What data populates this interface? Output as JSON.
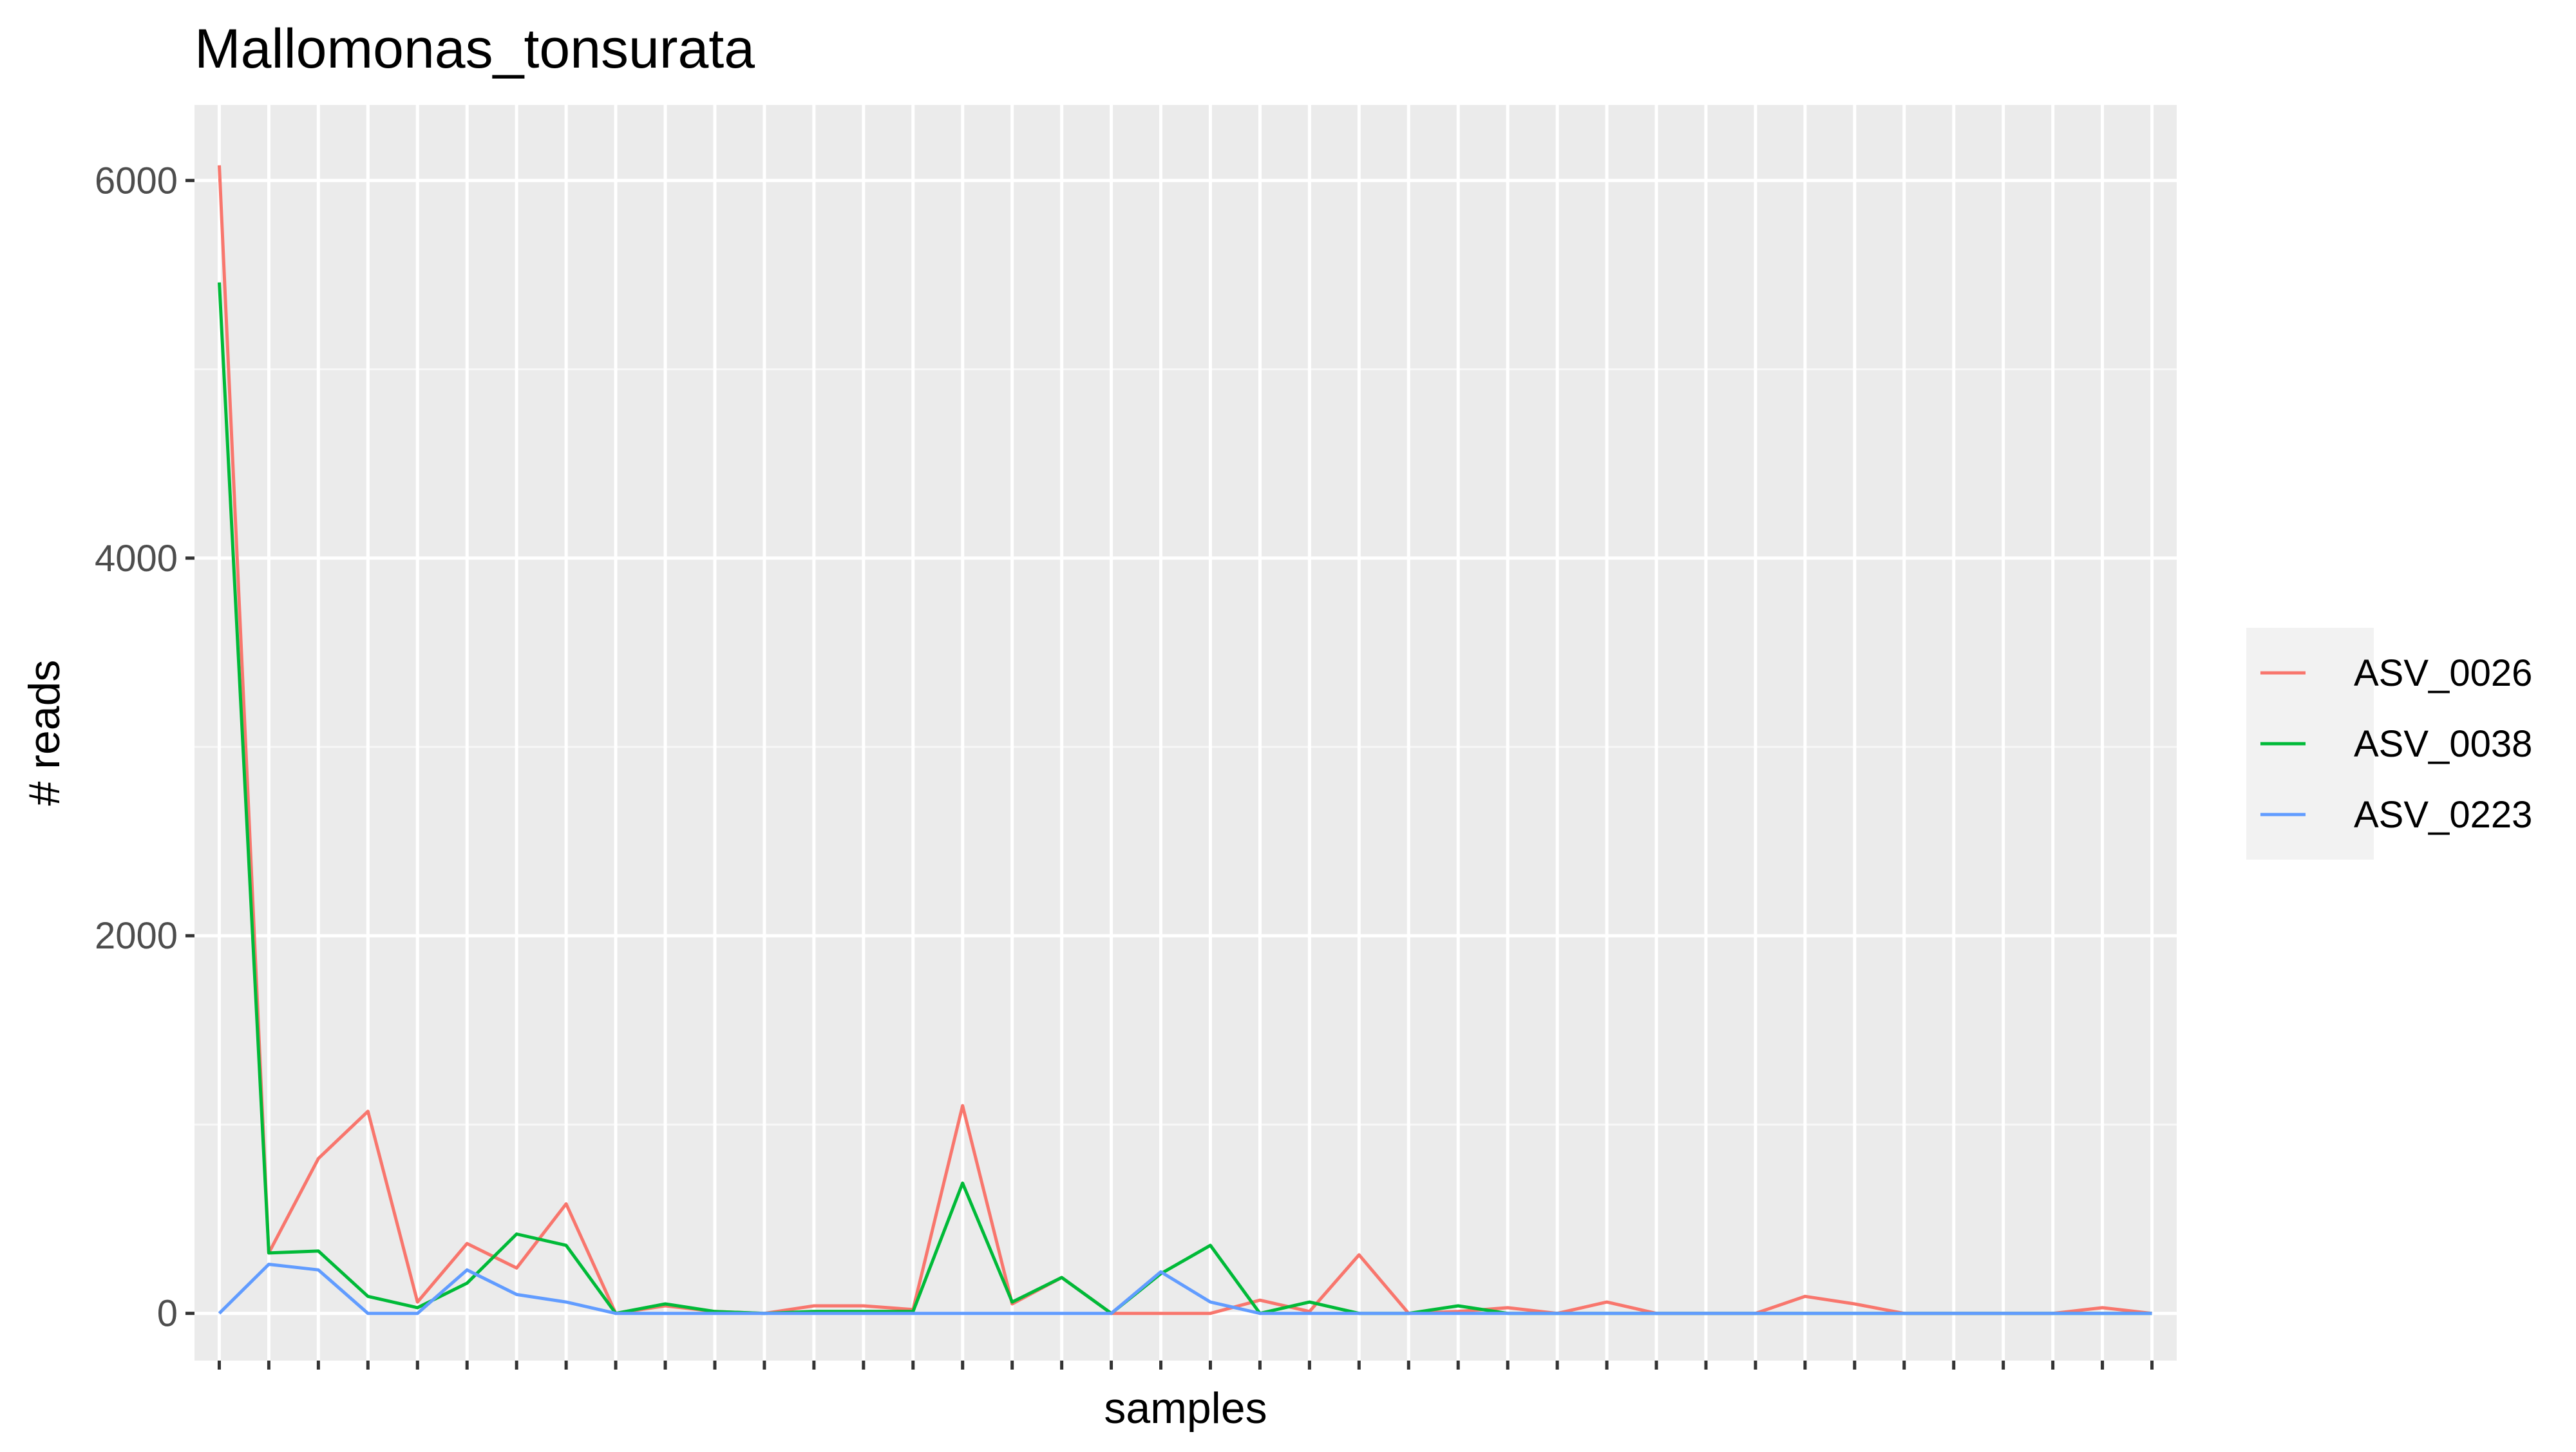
{
  "chart_data": {
    "type": "line",
    "title": "Mallomonas_tonsurata",
    "xlabel": "samples",
    "ylabel": "# reads",
    "x": [
      1,
      2,
      3,
      4,
      5,
      6,
      7,
      8,
      9,
      10,
      11,
      12,
      13,
      14,
      15,
      16,
      17,
      18,
      19,
      20,
      21,
      22,
      23,
      24,
      25,
      26,
      27,
      28,
      29,
      30,
      31,
      32,
      33,
      34,
      35,
      36,
      37,
      38,
      39,
      40
    ],
    "x_tick_labels": "none (tick marks only)",
    "y_ticks": [
      0,
      2000,
      4000,
      6000
    ],
    "ylim": [
      -250,
      6400
    ],
    "xlim": [
      0.5,
      40.5
    ],
    "grid": true,
    "panel_background": "#ebebeb",
    "legend_position": "right",
    "series": [
      {
        "name": "ASV_0026",
        "color": "#F8766D",
        "values": [
          6080,
          320,
          820,
          1070,
          60,
          370,
          240,
          580,
          0,
          40,
          10,
          0,
          40,
          40,
          20,
          1100,
          50,
          190,
          0,
          0,
          0,
          70,
          10,
          310,
          0,
          10,
          30,
          0,
          60,
          0,
          0,
          0,
          90,
          50,
          0,
          0,
          0,
          0,
          30,
          0
        ]
      },
      {
        "name": "ASV_0038",
        "color": "#00BA38",
        "values": [
          5460,
          320,
          330,
          90,
          30,
          160,
          420,
          360,
          0,
          50,
          10,
          0,
          10,
          10,
          10,
          690,
          60,
          190,
          0,
          210,
          360,
          0,
          60,
          0,
          0,
          40,
          0,
          0,
          0,
          0,
          0,
          0,
          0,
          0,
          0,
          0,
          0,
          0,
          0,
          0
        ]
      },
      {
        "name": "ASV_0223",
        "color": "#619CFF",
        "values": [
          0,
          260,
          230,
          0,
          0,
          230,
          100,
          60,
          0,
          0,
          0,
          0,
          0,
          0,
          0,
          0,
          0,
          0,
          0,
          220,
          60,
          0,
          0,
          0,
          0,
          0,
          0,
          0,
          0,
          0,
          0,
          0,
          0,
          0,
          0,
          0,
          0,
          0,
          0,
          0
        ]
      }
    ]
  }
}
